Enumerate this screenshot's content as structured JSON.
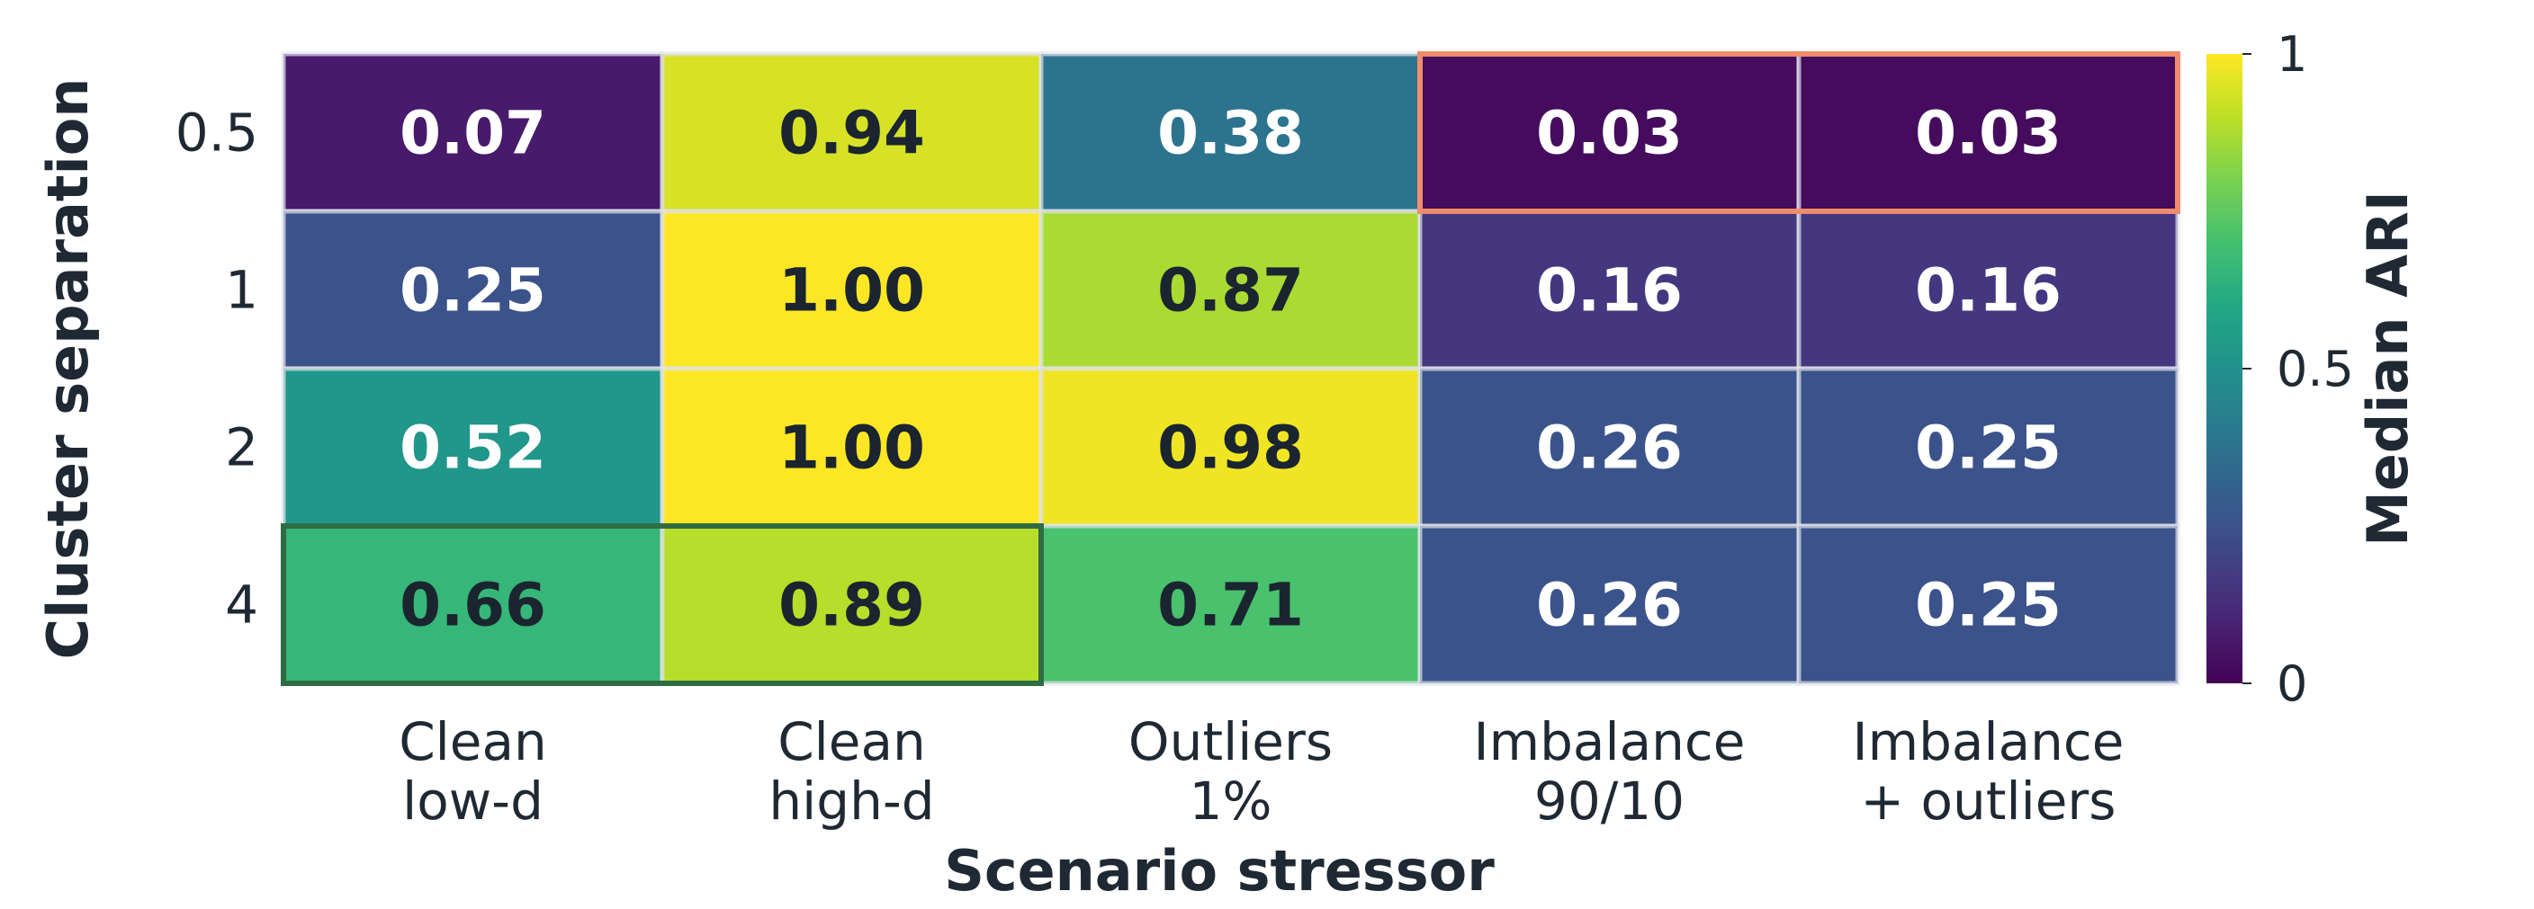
{
  "chart_data": {
    "type": "heatmap",
    "title": "",
    "xlabel": "Scenario stressor",
    "ylabel": "Cluster separation",
    "x_categories": [
      [
        "Clean",
        "low-d"
      ],
      [
        "Clean",
        "high-d"
      ],
      [
        "Outliers",
        "1%"
      ],
      [
        "Imbalance",
        "90/10"
      ],
      [
        "Imbalance",
        "+ outliers"
      ]
    ],
    "y_categories": [
      "0.5",
      "1",
      "2",
      "4"
    ],
    "values": [
      [
        0.07,
        0.94,
        0.38,
        0.03,
        0.03
      ],
      [
        0.25,
        1.0,
        0.87,
        0.16,
        0.16
      ],
      [
        0.52,
        1.0,
        0.98,
        0.26,
        0.25
      ],
      [
        0.66,
        0.89,
        0.71,
        0.26,
        0.25
      ]
    ],
    "value_labels": [
      [
        "0.07",
        "0.94",
        "0.38",
        "0.03",
        "0.03"
      ],
      [
        "0.25",
        "1.00",
        "0.87",
        "0.16",
        "0.16"
      ],
      [
        "0.52",
        "1.00",
        "0.98",
        "0.26",
        "0.25"
      ],
      [
        "0.66",
        "0.89",
        "0.71",
        "0.26",
        "0.25"
      ]
    ],
    "colormap": "viridis",
    "vmin": 0,
    "vmax": 1,
    "colorbar": {
      "label": "Median ARI",
      "ticks": [
        0,
        0.5,
        1
      ],
      "tick_labels": [
        "0",
        "0.5",
        "1"
      ]
    },
    "highlights": [
      {
        "row": 0,
        "col_start": 3,
        "col_end": 4,
        "color": "#f08c6c"
      },
      {
        "row": 3,
        "col_start": 0,
        "col_end": 1,
        "color": "#2f6b43"
      }
    ],
    "colors": {
      "text_dark": "#1a2530",
      "text_light": "#ffffff",
      "grid": "#dfe3ea"
    }
  }
}
